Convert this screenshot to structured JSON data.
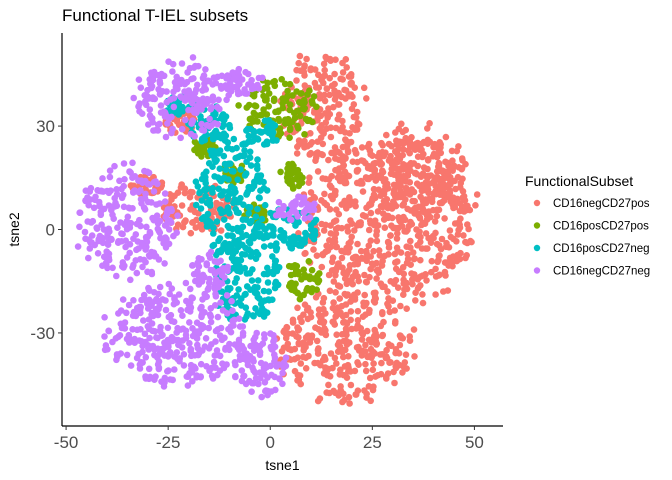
{
  "chart_data": {
    "type": "scatter",
    "title": "Functional T-IEL subsets",
    "xlabel": "tsne1",
    "ylabel": "tsne2",
    "xlim": [
      -51,
      57
    ],
    "ylim": [
      -57,
      57
    ],
    "x_ticks": [
      -50,
      -25,
      0,
      25,
      50
    ],
    "y_ticks": [
      -30,
      0,
      30
    ],
    "grid": false,
    "legend": {
      "title": "FunctionalSubset",
      "position": "right"
    },
    "series": [
      {
        "name": "CD16negCD27pos",
        "color": "#F8766D",
        "regions": [
          {
            "cx": 29,
            "cy": 2,
            "rx": 21,
            "ry": 24
          },
          {
            "cx": 18,
            "cy": -34,
            "rx": 16,
            "ry": 16
          },
          {
            "cx": 13,
            "cy": 35,
            "rx": 10,
            "ry": 16
          },
          {
            "cx": 36,
            "cy": 16,
            "rx": 12,
            "ry": 14
          },
          {
            "cx": -18,
            "cy": 6,
            "rx": 9,
            "ry": 7
          },
          {
            "cx": -22,
            "cy": 32,
            "rx": 4,
            "ry": 4
          },
          {
            "cx": -30,
            "cy": 13,
            "rx": 4,
            "ry": 3
          }
        ]
      },
      {
        "name": "CD16posCD27pos",
        "color": "#7CAE00",
        "regions": [
          {
            "cx": 2,
            "cy": 35,
            "rx": 9,
            "ry": 9
          },
          {
            "cx": 8,
            "cy": -14,
            "rx": 4,
            "ry": 6
          },
          {
            "cx": -4,
            "cy": 4,
            "rx": 3,
            "ry": 3
          },
          {
            "cx": 5,
            "cy": 15,
            "rx": 3,
            "ry": 4
          },
          {
            "cx": -9,
            "cy": 16,
            "rx": 3,
            "ry": 3
          },
          {
            "cx": -16,
            "cy": 24,
            "rx": 3,
            "ry": 3
          }
        ]
      },
      {
        "name": "CD16posCD27neg",
        "color": "#00BFC4",
        "regions": [
          {
            "cx": -9,
            "cy": 10,
            "rx": 9,
            "ry": 17
          },
          {
            "cx": -6,
            "cy": -14,
            "rx": 8,
            "ry": 14
          },
          {
            "cx": 4,
            "cy": 0,
            "rx": 8,
            "ry": 6
          },
          {
            "cx": -14,
            "cy": 30,
            "rx": 6,
            "ry": 6
          },
          {
            "cx": -22,
            "cy": 36,
            "rx": 4,
            "ry": 3
          },
          {
            "cx": -2,
            "cy": 28,
            "rx": 4,
            "ry": 4
          }
        ]
      },
      {
        "name": "CD16negCD27neg",
        "color": "#C77CFF",
        "regions": [
          {
            "cx": -35,
            "cy": 2,
            "rx": 12,
            "ry": 16
          },
          {
            "cx": -23,
            "cy": -30,
            "rx": 17,
            "ry": 15
          },
          {
            "cx": -22,
            "cy": 38,
            "rx": 11,
            "ry": 12
          },
          {
            "cx": -3,
            "cy": -39,
            "rx": 7,
            "ry": 10
          },
          {
            "cx": -7,
            "cy": 43,
            "rx": 5,
            "ry": 4
          },
          {
            "cx": 6,
            "cy": 6,
            "rx": 5,
            "ry": 4
          },
          {
            "cx": -15,
            "cy": -12,
            "rx": 5,
            "ry": 5
          }
        ]
      }
    ]
  }
}
